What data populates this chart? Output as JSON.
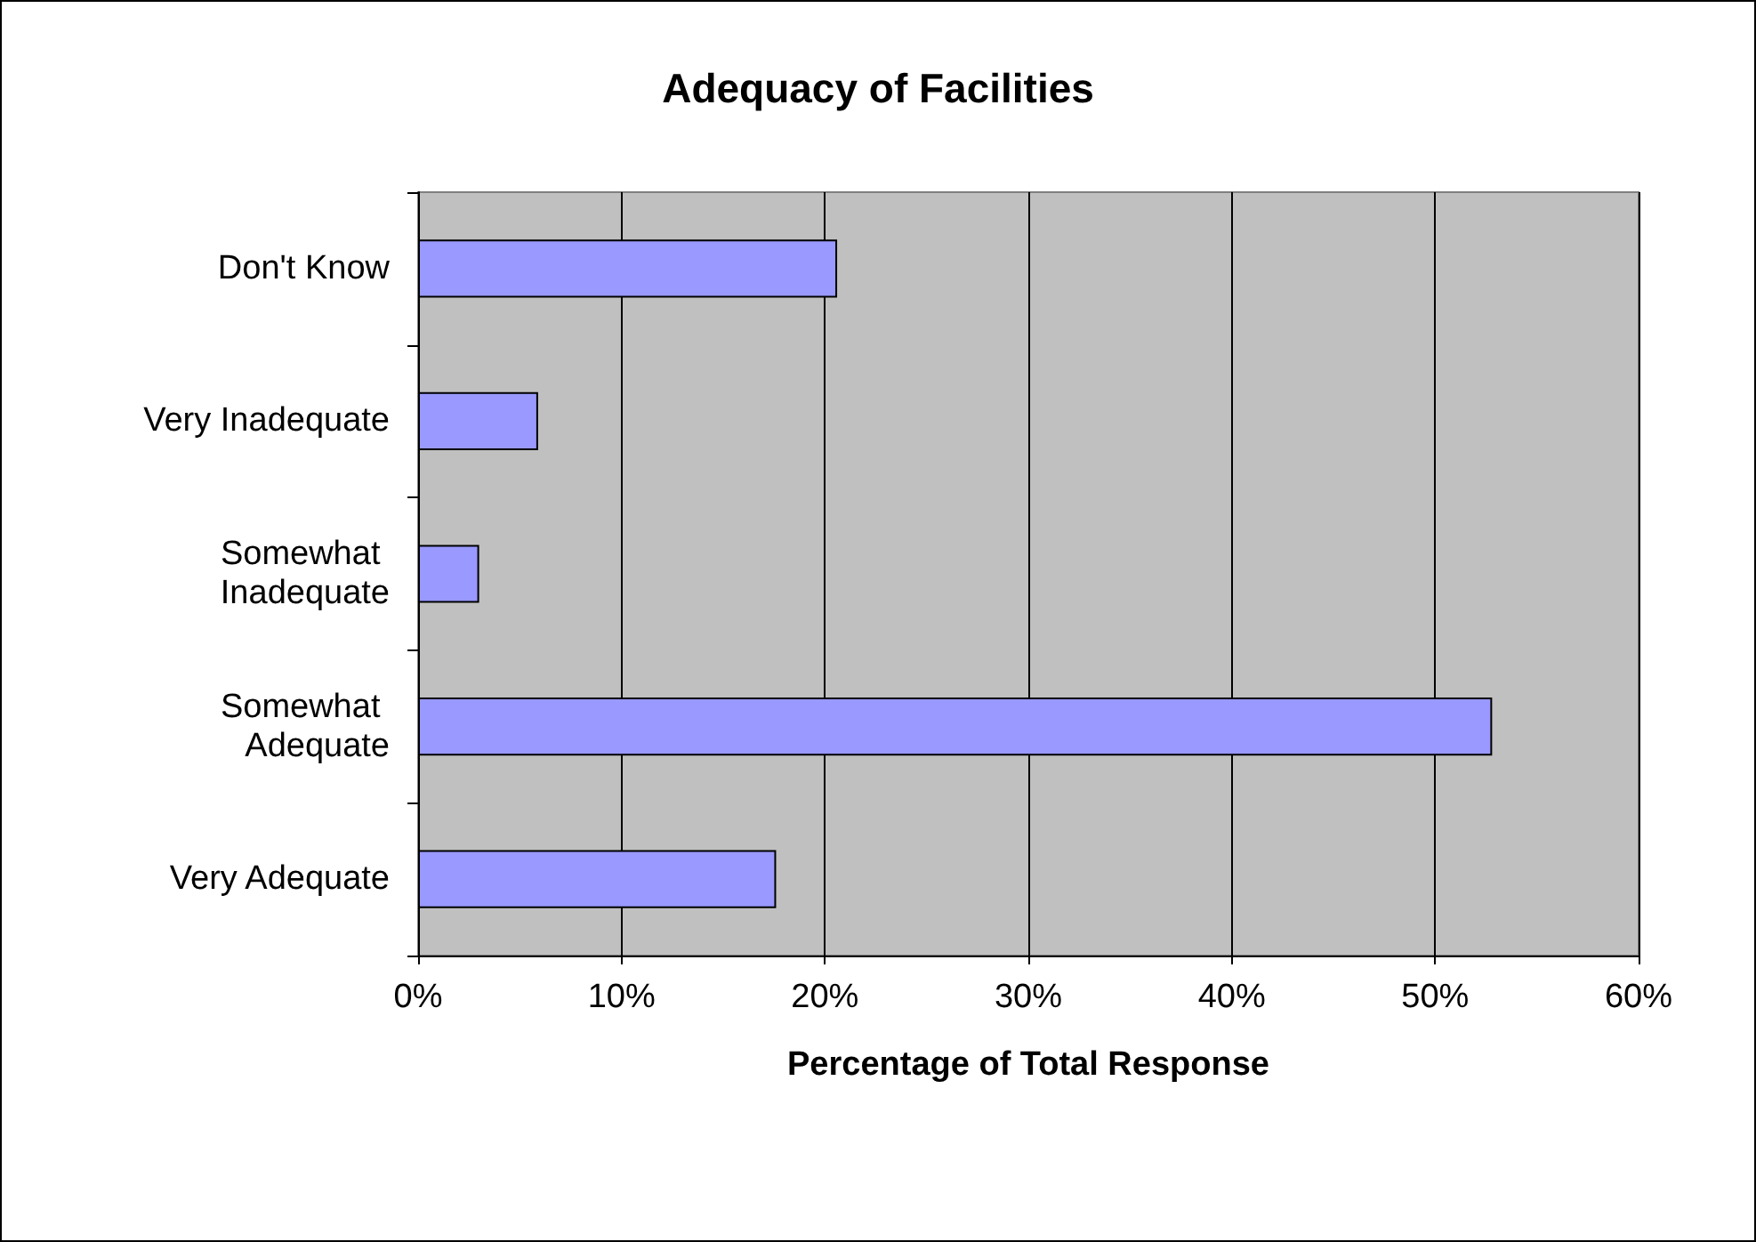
{
  "chart_data": {
    "type": "bar",
    "orientation": "horizontal",
    "title": "Adequacy of Facilities",
    "xlabel": "Percentage of Total Response",
    "categories": [
      "Don't Know",
      "Very Inadequate",
      "Somewhat Inadequate",
      "Somewhat Adequate",
      "Very Adequate"
    ],
    "values": [
      20.6,
      5.9,
      3.0,
      52.8,
      17.6
    ],
    "color": "#9999ff",
    "xlim": [
      0,
      60
    ],
    "xticks": [
      {
        "value": 0,
        "label": "0%"
      },
      {
        "value": 10,
        "label": "10%"
      },
      {
        "value": 20,
        "label": "20%"
      },
      {
        "value": 30,
        "label": "30%"
      },
      {
        "value": 40,
        "label": "40%"
      },
      {
        "value": 50,
        "label": "50%"
      },
      {
        "value": 60,
        "label": "60%"
      }
    ],
    "grid": "x"
  }
}
